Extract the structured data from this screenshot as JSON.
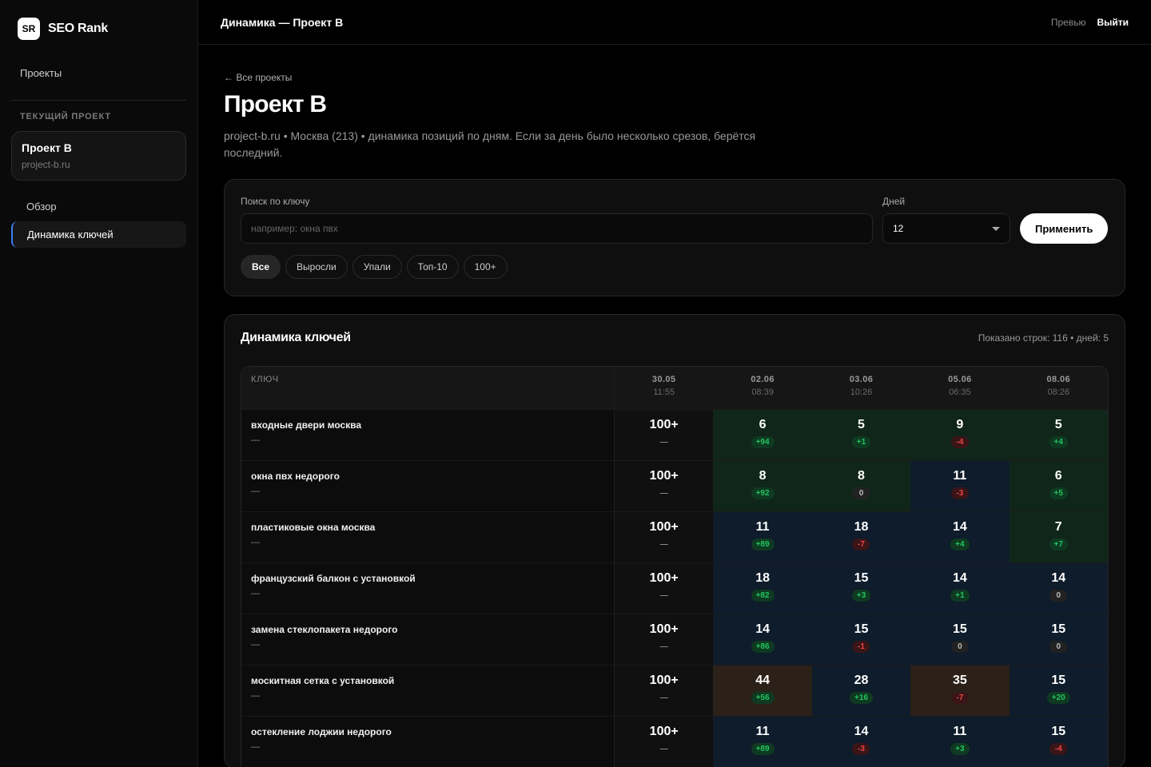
{
  "brand": {
    "logo": "SR",
    "name": "SEO Rank"
  },
  "sidebar": {
    "projects_link": "Проекты",
    "section_label": "ТЕКУЩИЙ ПРОЕКТ",
    "project": {
      "name": "Проект B",
      "domain": "project-b.ru"
    },
    "nav": [
      {
        "label": "Обзор"
      },
      {
        "label": "Динамика ключей"
      }
    ]
  },
  "topbar": {
    "title": "Динамика — Проект B",
    "preview": "Превью",
    "logout": "Выйти"
  },
  "page": {
    "back": "← Все проекты",
    "title": "Проект B",
    "description": "project-b.ru • Москва (213) • динамика позиций по дням. Если за день было несколько срезов, берётся последний."
  },
  "filters": {
    "search_label": "Поиск по ключу",
    "search_placeholder": "например: окна пвх",
    "days_label": "Дней",
    "days_value": "12",
    "apply": "Применить",
    "chips": [
      {
        "label": "Все",
        "active": true
      },
      {
        "label": "Выросли"
      },
      {
        "label": "Упали"
      },
      {
        "label": "Топ-10"
      },
      {
        "label": "100+"
      }
    ]
  },
  "table": {
    "title": "Динамика ключей",
    "meta": "Показано строк: 116 • дней: 5",
    "key_header": "КЛЮЧ",
    "days": [
      {
        "date": "30.05",
        "time": "11:55"
      },
      {
        "date": "02.06",
        "time": "08:39"
      },
      {
        "date": "03.06",
        "time": "10:26"
      },
      {
        "date": "05.06",
        "time": "06:35"
      },
      {
        "date": "08.06",
        "time": "08:26"
      }
    ],
    "rows": [
      {
        "keyword": "входные двери москва",
        "sub": "—",
        "cells": [
          {
            "pos": "100+",
            "delta": "—"
          },
          {
            "pos": "6",
            "delta": "+94",
            "tone": "green"
          },
          {
            "pos": "5",
            "delta": "+1",
            "tone": "green"
          },
          {
            "pos": "9",
            "delta": "-4",
            "tone": "green"
          },
          {
            "pos": "5",
            "delta": "+4",
            "tone": "green"
          }
        ]
      },
      {
        "keyword": "окна пвх недорого",
        "sub": "—",
        "cells": [
          {
            "pos": "100+",
            "delta": "—"
          },
          {
            "pos": "8",
            "delta": "+92",
            "tone": "green"
          },
          {
            "pos": "8",
            "delta": "0",
            "tone": "green"
          },
          {
            "pos": "11",
            "delta": "-3",
            "tone": "blue"
          },
          {
            "pos": "6",
            "delta": "+5",
            "tone": "green"
          }
        ]
      },
      {
        "keyword": "пластиковые окна москва",
        "sub": "—",
        "cells": [
          {
            "pos": "100+",
            "delta": "—"
          },
          {
            "pos": "11",
            "delta": "+89",
            "tone": "blue"
          },
          {
            "pos": "18",
            "delta": "-7",
            "tone": "blue"
          },
          {
            "pos": "14",
            "delta": "+4",
            "tone": "blue"
          },
          {
            "pos": "7",
            "delta": "+7",
            "tone": "green"
          }
        ]
      },
      {
        "keyword": "французский балкон с установкой",
        "sub": "—",
        "cells": [
          {
            "pos": "100+",
            "delta": "—"
          },
          {
            "pos": "18",
            "delta": "+82",
            "tone": "blue"
          },
          {
            "pos": "15",
            "delta": "+3",
            "tone": "blue"
          },
          {
            "pos": "14",
            "delta": "+1",
            "tone": "blue"
          },
          {
            "pos": "14",
            "delta": "0",
            "tone": "blue"
          }
        ]
      },
      {
        "keyword": "замена стеклопакета недорого",
        "sub": "—",
        "cells": [
          {
            "pos": "100+",
            "delta": "—"
          },
          {
            "pos": "14",
            "delta": "+86",
            "tone": "blue"
          },
          {
            "pos": "15",
            "delta": "-1",
            "tone": "blue"
          },
          {
            "pos": "15",
            "delta": "0",
            "tone": "blue"
          },
          {
            "pos": "15",
            "delta": "0",
            "tone": "blue"
          }
        ]
      },
      {
        "keyword": "москитная сетка с установкой",
        "sub": "—",
        "cells": [
          {
            "pos": "100+",
            "delta": "—"
          },
          {
            "pos": "44",
            "delta": "+56",
            "tone": "brown"
          },
          {
            "pos": "28",
            "delta": "+16",
            "tone": "blue"
          },
          {
            "pos": "35",
            "delta": "-7",
            "tone": "brown"
          },
          {
            "pos": "15",
            "delta": "+20",
            "tone": "blue"
          }
        ]
      },
      {
        "keyword": "остекление лоджии недорого",
        "sub": "—",
        "cells": [
          {
            "pos": "100+",
            "delta": "—"
          },
          {
            "pos": "11",
            "delta": "+89",
            "tone": "blue"
          },
          {
            "pos": "14",
            "delta": "-3",
            "tone": "blue"
          },
          {
            "pos": "11",
            "delta": "+3",
            "tone": "blue"
          },
          {
            "pos": "15",
            "delta": "-4",
            "tone": "blue"
          }
        ]
      }
    ]
  }
}
